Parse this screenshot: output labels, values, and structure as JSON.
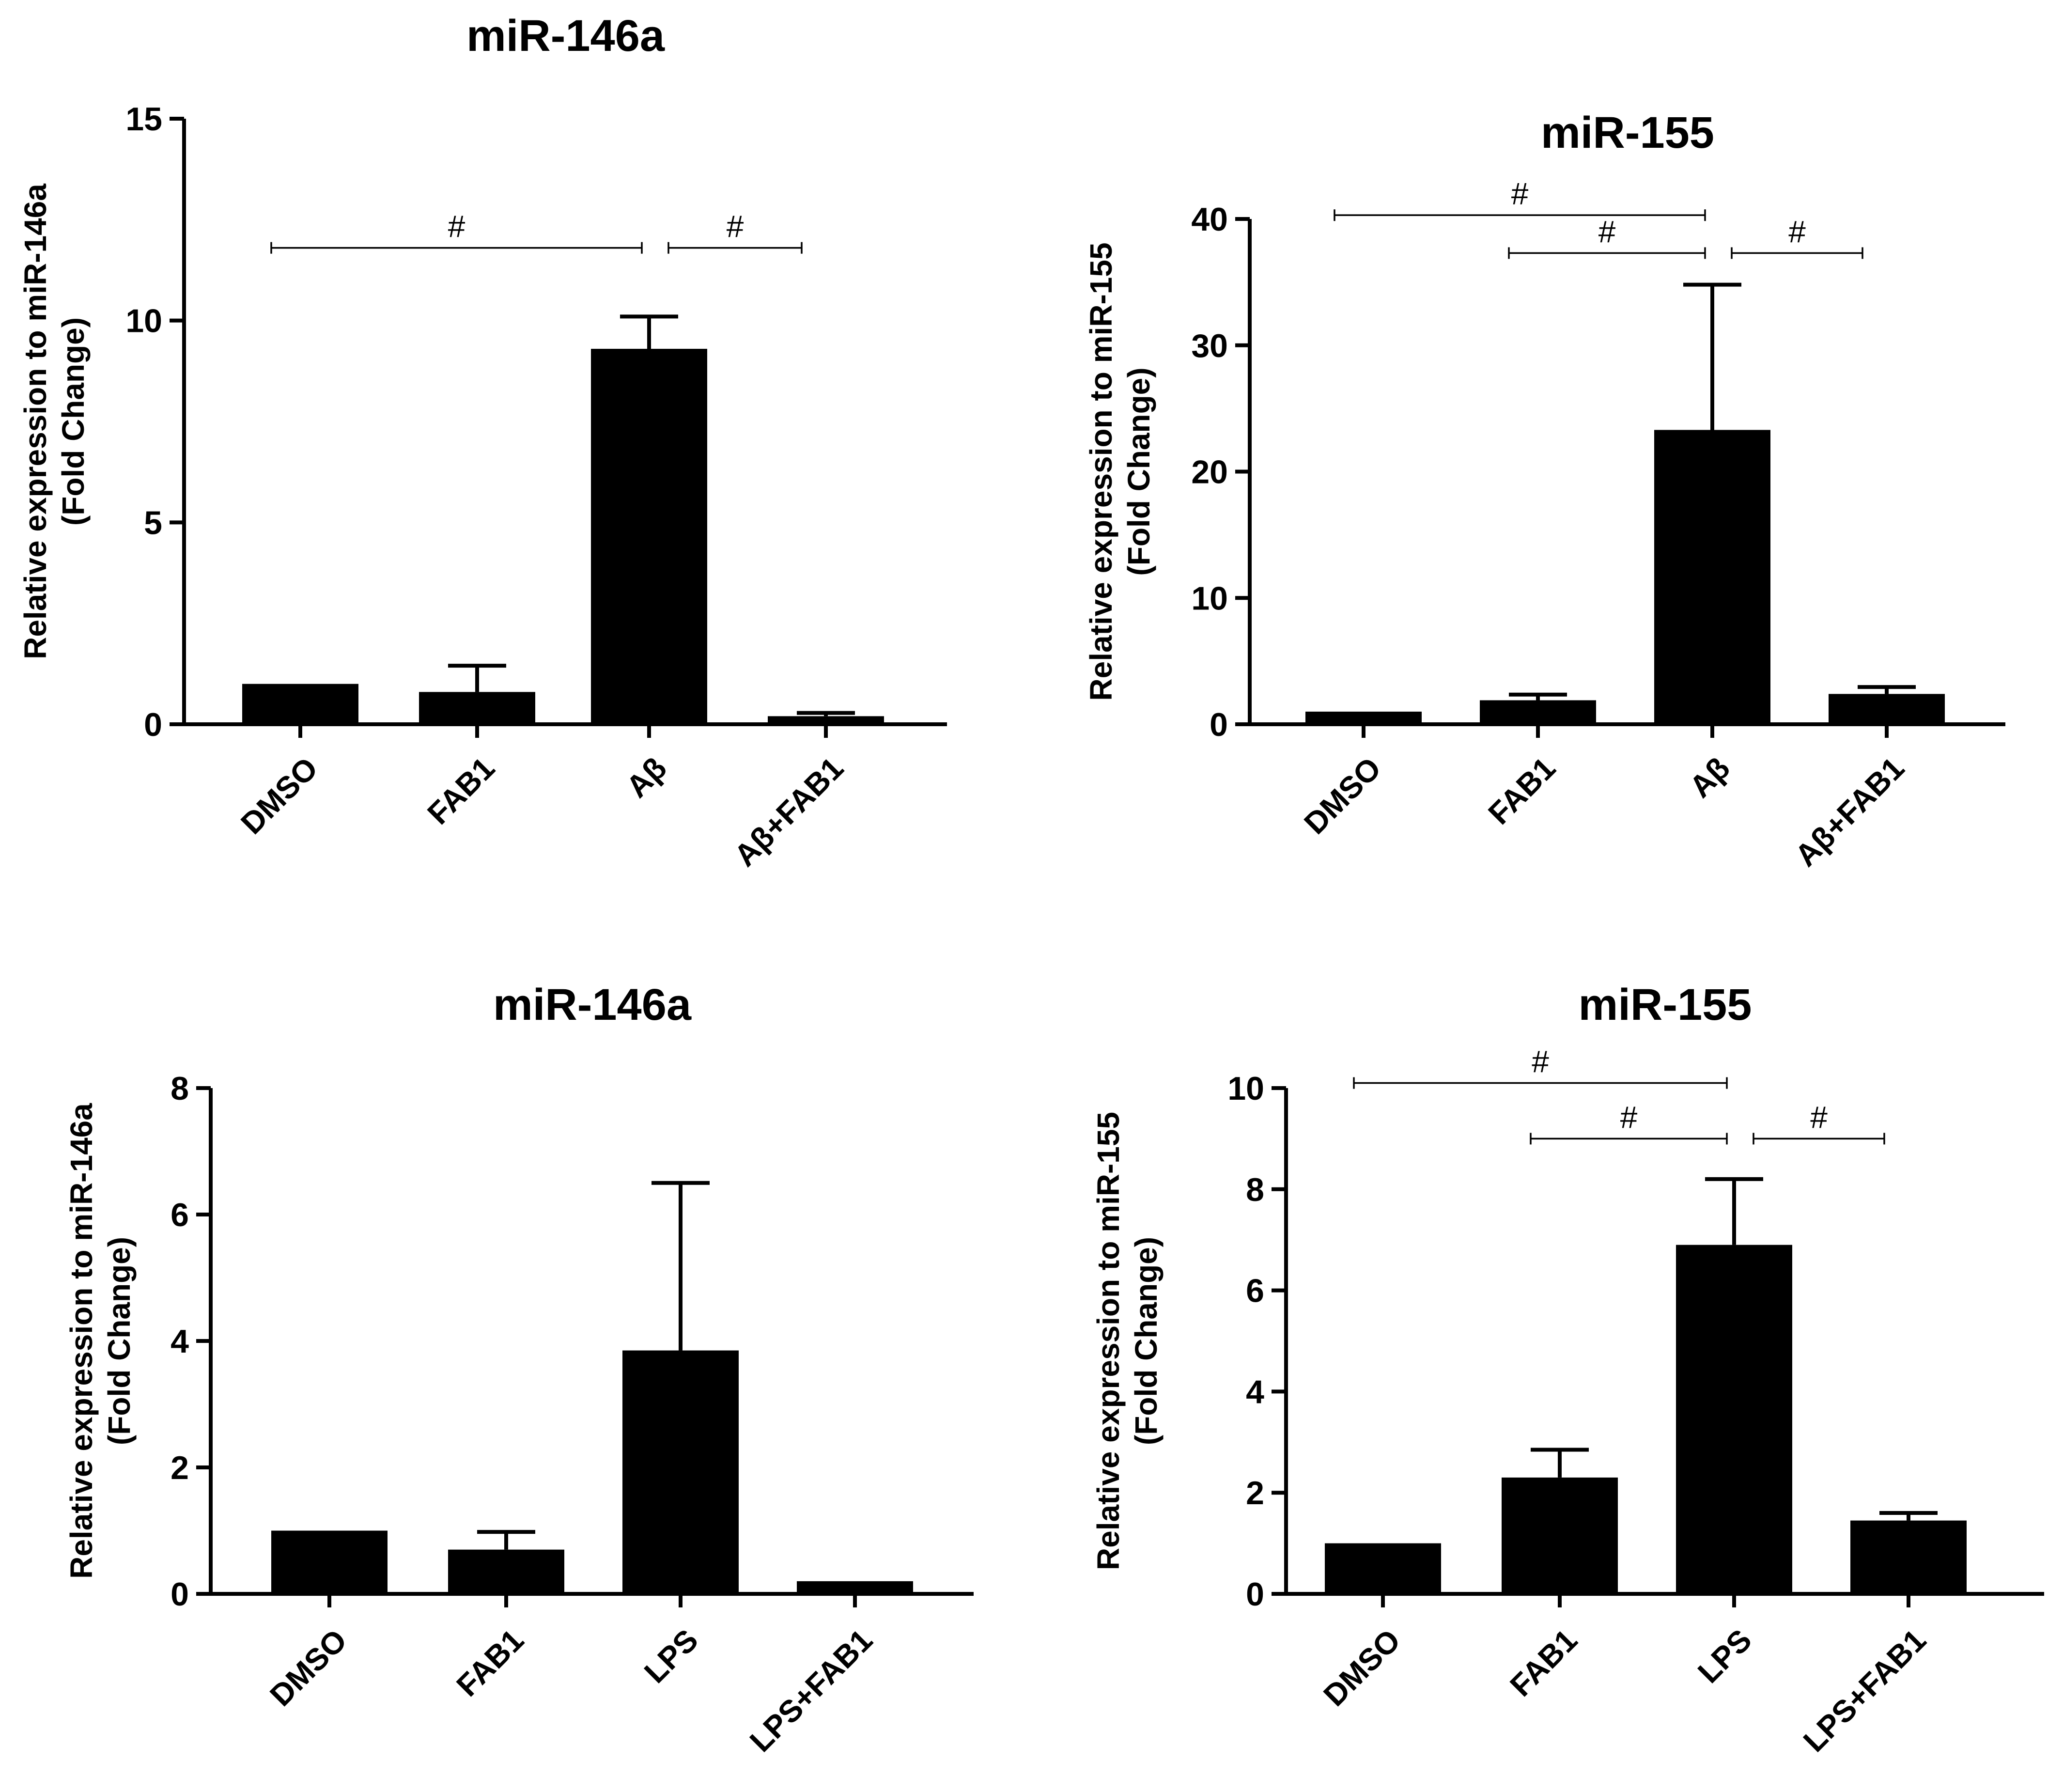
{
  "chart_data": [
    {
      "type": "bar",
      "title": "miR-146a",
      "ylabel": [
        "Relative expression to miR-146a",
        "(Fold Change)"
      ],
      "categories": [
        "DMSO",
        "FAB1",
        "Aβ",
        "Aβ+FAB1"
      ],
      "values": [
        1.0,
        0.8,
        9.3,
        0.2
      ],
      "errors": [
        0,
        0.65,
        0.8,
        0.08
      ],
      "ylim": [
        0,
        15
      ],
      "yticks": [
        "0",
        "5",
        "10",
        "15"
      ],
      "significance": [
        {
          "from": 0,
          "to": 2,
          "y": 11.8,
          "label": "#"
        },
        {
          "from": 2,
          "to": 3,
          "y": 11.8,
          "label": "#"
        }
      ]
    },
    {
      "type": "bar",
      "title": "miR-155",
      "ylabel": [
        "Relative expression to miR-155",
        "(Fold Change)"
      ],
      "categories": [
        "DMSO",
        "FAB1",
        "Aβ",
        "Aβ+FAB1"
      ],
      "values": [
        1.0,
        1.9,
        23.3,
        2.4
      ],
      "errors": [
        0,
        0.45,
        11.5,
        0.55
      ],
      "ylim": [
        0,
        40
      ],
      "yticks": [
        "0",
        "10",
        "20",
        "30",
        "40"
      ],
      "significance": [
        {
          "from": 0,
          "to": 2,
          "y": 40.3,
          "label": "#"
        },
        {
          "from": 1,
          "to": 2,
          "y": 37.3,
          "label": "#"
        },
        {
          "from": 2,
          "to": 3,
          "y": 37.3,
          "label": "#"
        }
      ]
    },
    {
      "type": "bar",
      "title": "miR-146a",
      "ylabel": [
        "Relative expression to miR-146a",
        "(Fold Change)"
      ],
      "categories": [
        "DMSO",
        "FAB1",
        "LPS",
        "LPS+FAB1"
      ],
      "values": [
        1.0,
        0.7,
        3.85,
        0.2
      ],
      "errors": [
        0,
        0.28,
        2.65,
        0
      ],
      "ylim": [
        0,
        8
      ],
      "yticks": [
        "0",
        "2",
        "4",
        "6",
        "8"
      ],
      "significance": []
    },
    {
      "type": "bar",
      "title": "miR-155",
      "ylabel": [
        "Relative expression to miR-155",
        "(Fold Change)"
      ],
      "categories": [
        "DMSO",
        "FAB1",
        "LPS",
        "LPS+FAB1"
      ],
      "values": [
        1.0,
        2.3,
        6.9,
        1.45
      ],
      "errors": [
        0,
        0.55,
        1.3,
        0.15
      ],
      "ylim": [
        0,
        10
      ],
      "yticks": [
        "0",
        "2",
        "4",
        "6",
        "8",
        "10"
      ],
      "significance": [
        {
          "from": 0,
          "to": 2,
          "y": 10.1,
          "label": "#"
        },
        {
          "from": 1,
          "to": 2,
          "y": 9.0,
          "label": "#"
        },
        {
          "from": 2,
          "to": 3,
          "y": 9.0,
          "label": "#"
        }
      ]
    }
  ]
}
